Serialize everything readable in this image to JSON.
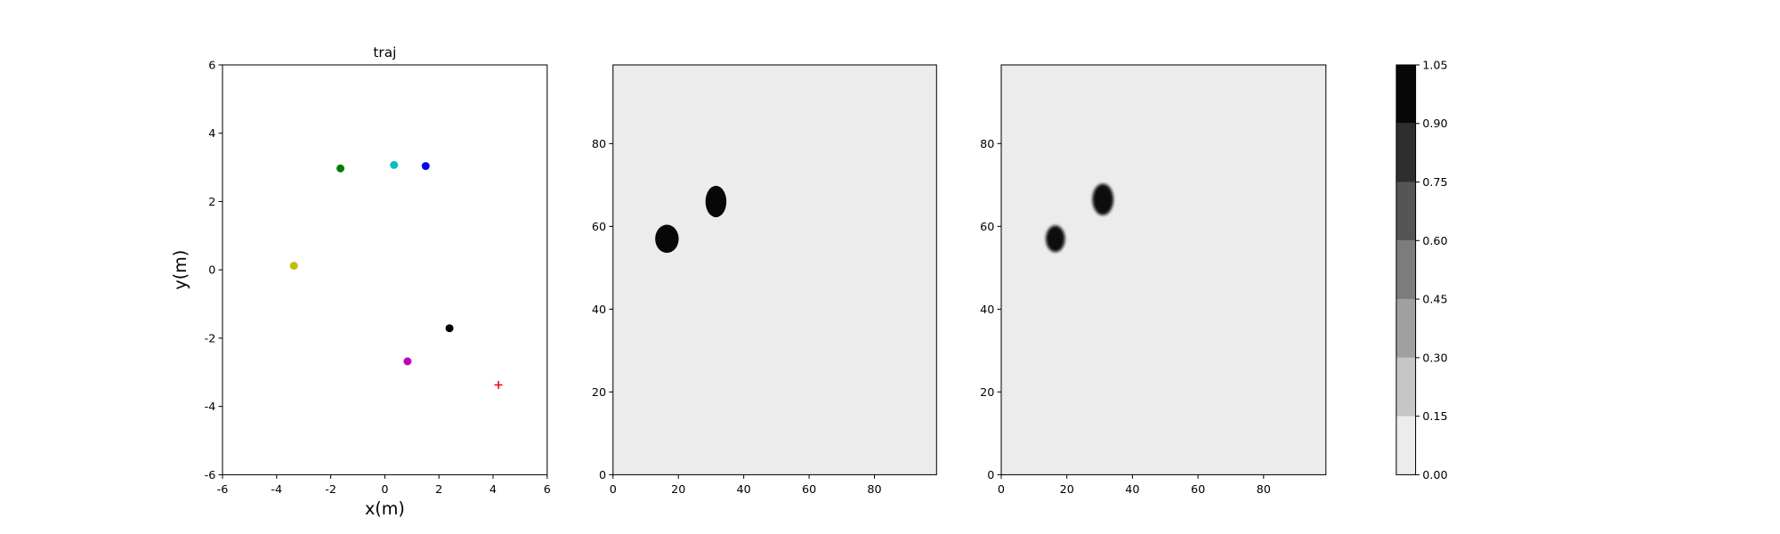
{
  "chart_data": [
    {
      "type": "scatter",
      "title": "traj",
      "xlabel": "x(m)",
      "ylabel": "y(m)",
      "x": [
        -1.64,
        0.34,
        1.51,
        -3.36,
        2.39,
        0.84,
        4.2
      ],
      "y": [
        2.97,
        3.07,
        3.04,
        0.12,
        -1.71,
        -2.68,
        -3.37
      ],
      "colors": [
        "#008000",
        "#00bfbf",
        "#0000ff",
        "#bfbf00",
        "#000000",
        "#bf00bf",
        "#ff0000"
      ],
      "markers": [
        "circle",
        "circle",
        "circle",
        "circle",
        "circle",
        "circle",
        "plus"
      ],
      "xlim": [
        -6,
        6
      ],
      "ylim": [
        -6,
        6
      ],
      "xticks": [
        -6,
        -4,
        -2,
        0,
        2,
        4,
        6
      ],
      "yticks": [
        -6,
        -4,
        -2,
        0,
        2,
        4,
        6
      ]
    },
    {
      "type": "heatmap",
      "background": 0.05,
      "blur": false,
      "blobs": [
        {
          "x": 16.5,
          "y": 57,
          "rx": 3.6,
          "ry": 3.4,
          "value": 1.0
        },
        {
          "x": 31.5,
          "y": 66,
          "rx": 3.2,
          "ry": 3.8,
          "value": 1.0
        }
      ],
      "xlim": [
        0,
        99
      ],
      "ylim": [
        0,
        99
      ],
      "xticks": [
        0,
        20,
        40,
        60,
        80
      ],
      "yticks": [
        0,
        20,
        40,
        60,
        80
      ]
    },
    {
      "type": "heatmap",
      "background": 0.05,
      "blur": true,
      "blobs": [
        {
          "x": 16.5,
          "y": 57,
          "rx": 2.9,
          "ry": 3.2,
          "value": 1.0
        },
        {
          "x": 31,
          "y": 66.5,
          "rx": 3.2,
          "ry": 3.8,
          "value": 1.0
        }
      ],
      "xlim": [
        0,
        99
      ],
      "ylim": [
        0,
        99
      ],
      "xticks": [
        0,
        20,
        40,
        60,
        80
      ],
      "yticks": [
        0,
        20,
        40,
        60,
        80
      ]
    },
    {
      "type": "colorbar",
      "ticks": [
        {
          "value": 0,
          "label": "0.00"
        },
        {
          "value": 0.15,
          "label": "0.15"
        },
        {
          "value": 0.3,
          "label": "0.30"
        },
        {
          "value": 0.45,
          "label": "0.45"
        },
        {
          "value": 0.6,
          "label": "0.60"
        },
        {
          "value": 0.75,
          "label": "0.75"
        },
        {
          "value": 0.9,
          "label": "0.90"
        },
        {
          "value": 1.05,
          "label": "1.05"
        }
      ],
      "colors": [
        "#ececec",
        "#c6c6c6",
        "#a0a0a0",
        "#7c7c7c",
        "#555555",
        "#2e2e2e",
        "#070707"
      ],
      "ylim": [
        0,
        1.05
      ]
    }
  ]
}
